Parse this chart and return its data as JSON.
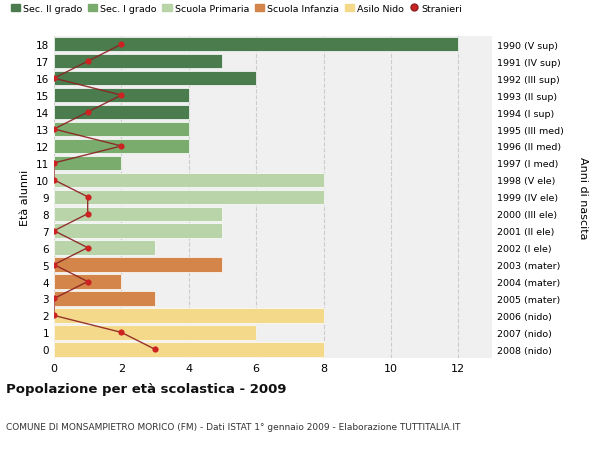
{
  "ages": [
    18,
    17,
    16,
    15,
    14,
    13,
    12,
    11,
    10,
    9,
    8,
    7,
    6,
    5,
    4,
    3,
    2,
    1,
    0
  ],
  "right_labels": [
    "1990 (V sup)",
    "1991 (IV sup)",
    "1992 (III sup)",
    "1993 (II sup)",
    "1994 (I sup)",
    "1995 (III med)",
    "1996 (II med)",
    "1997 (I med)",
    "1998 (V ele)",
    "1999 (IV ele)",
    "2000 (III ele)",
    "2001 (II ele)",
    "2002 (I ele)",
    "2003 (mater)",
    "2004 (mater)",
    "2005 (mater)",
    "2006 (nido)",
    "2007 (nido)",
    "2008 (nido)"
  ],
  "bar_values": [
    12,
    5,
    6,
    4,
    4,
    4,
    4,
    2,
    8,
    8,
    5,
    5,
    3,
    5,
    2,
    3,
    8,
    6,
    8
  ],
  "bar_colors": [
    "#4a7c4e",
    "#4a7c4e",
    "#4a7c4e",
    "#4a7c4e",
    "#4a7c4e",
    "#7aac6e",
    "#7aac6e",
    "#7aac6e",
    "#b8d4a8",
    "#b8d4a8",
    "#b8d4a8",
    "#b8d4a8",
    "#b8d4a8",
    "#d4854a",
    "#d4854a",
    "#d4854a",
    "#f5d98a",
    "#f5d98a",
    "#f5d98a"
  ],
  "stranieri_values": [
    2,
    1,
    0,
    2,
    1,
    0,
    2,
    0,
    0,
    1,
    1,
    0,
    1,
    0,
    1,
    0,
    0,
    2,
    3
  ],
  "legend_labels": [
    "Sec. II grado",
    "Sec. I grado",
    "Scuola Primaria",
    "Scuola Infanzia",
    "Asilo Nido",
    "Stranieri"
  ],
  "legend_colors": [
    "#4a7c4e",
    "#7aac6e",
    "#b8d4a8",
    "#d4854a",
    "#f5d98a",
    "#cc2222"
  ],
  "ylabel_left": "Età alunni",
  "ylabel_right": "Anni di nascita",
  "title": "Popolazione per età scolastica - 2009",
  "subtitle": "COMUNE DI MONSAMPIETRO MORICO (FM) - Dati ISTAT 1° gennaio 2009 - Elaborazione TUTTITALIA.IT",
  "xlim": [
    0,
    13
  ],
  "ylim": [
    -0.5,
    18.5
  ],
  "xticks": [
    0,
    2,
    4,
    6,
    8,
    10,
    12
  ],
  "bg_color": "#ffffff",
  "plot_bg_color": "#f0f0f0",
  "grid_color": "#cccccc",
  "stranieri_line_color": "#8b2020",
  "stranieri_dot_color": "#cc2222"
}
